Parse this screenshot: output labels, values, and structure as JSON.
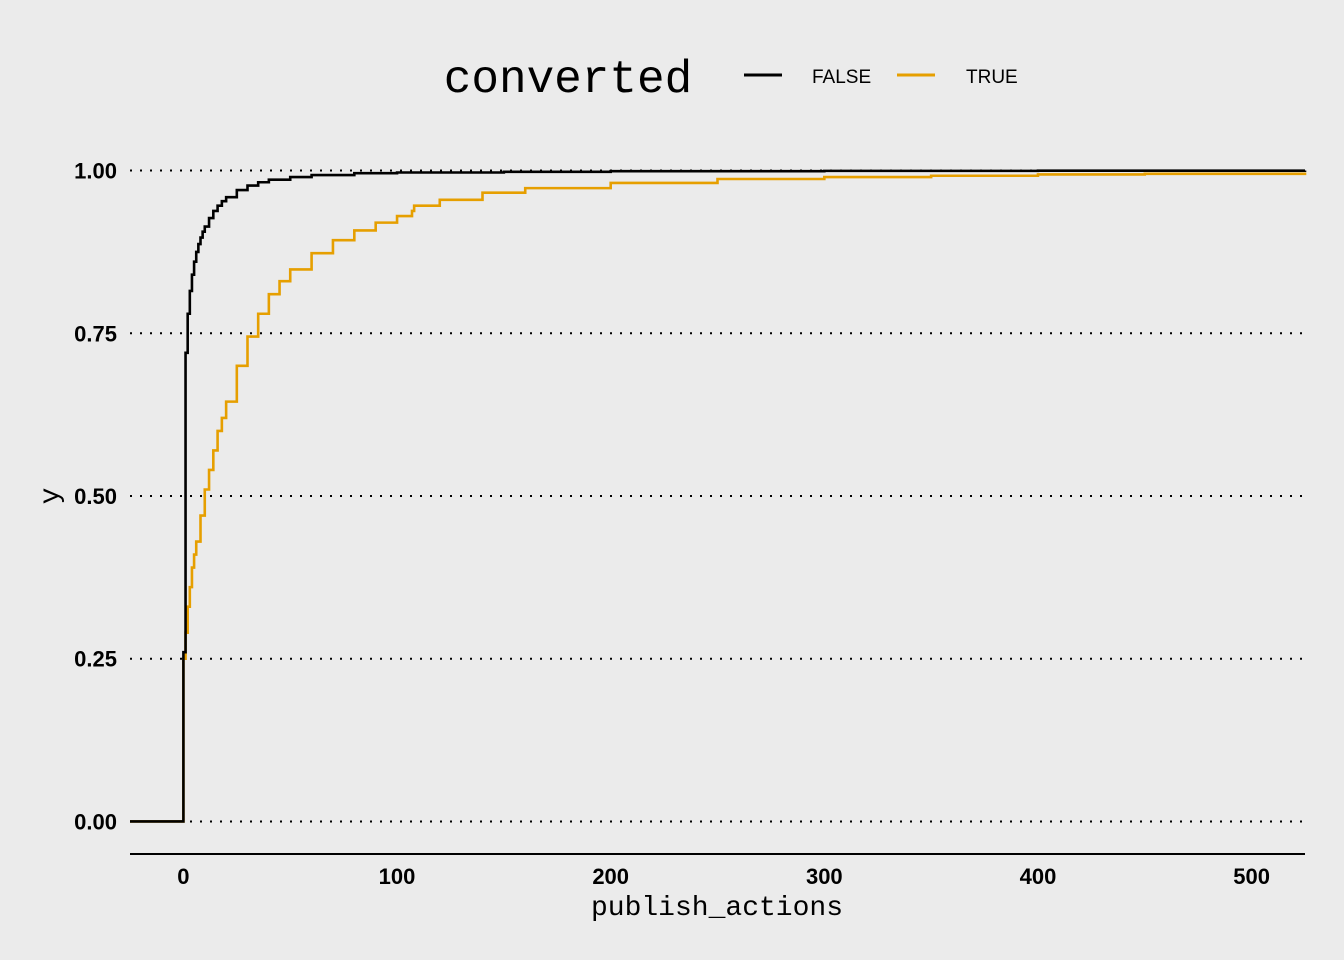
{
  "chart_data": {
    "type": "line",
    "subtype": "ecdf-step",
    "xlabel": "publish_actions",
    "ylabel": "y",
    "xlim": [
      -25,
      525
    ],
    "ylim": [
      -0.05,
      1.05
    ],
    "x_ticks": [
      0,
      100,
      200,
      300,
      400,
      500
    ],
    "x_tick_labels": [
      "0",
      "100",
      "200",
      "300",
      "400",
      "500"
    ],
    "y_ticks": [
      0,
      0.25,
      0.5,
      0.75,
      1.0
    ],
    "y_tick_labels": [
      "0.00",
      "0.25",
      "0.50",
      "0.75",
      "1.00"
    ],
    "grid": "horizontal-dotted",
    "legend": {
      "title": "converted",
      "placement": "top",
      "entries": [
        "FALSE",
        "TRUE"
      ]
    },
    "series": [
      {
        "name": "FALSE",
        "color": "#000000",
        "x": [
          -25,
          0,
          0,
          1,
          2,
          3,
          4,
          5,
          6,
          7,
          8,
          9,
          10,
          12,
          14,
          16,
          18,
          20,
          25,
          30,
          35,
          40,
          50,
          60,
          80,
          100,
          150,
          200,
          300,
          400,
          525
        ],
        "y": [
          0,
          0,
          0.26,
          0.72,
          0.78,
          0.815,
          0.84,
          0.86,
          0.875,
          0.887,
          0.897,
          0.906,
          0.914,
          0.927,
          0.938,
          0.946,
          0.953,
          0.959,
          0.97,
          0.977,
          0.982,
          0.986,
          0.99,
          0.993,
          0.996,
          0.997,
          0.998,
          0.999,
          0.9995,
          0.9998,
          1.0
        ]
      },
      {
        "name": "TRUE",
        "color": "#e69f00",
        "x": [
          -25,
          0,
          0,
          1,
          2,
          3,
          4,
          5,
          6,
          8,
          10,
          12,
          14,
          16,
          18,
          20,
          25,
          30,
          35,
          40,
          45,
          50,
          60,
          70,
          80,
          90,
          100,
          107,
          108,
          120,
          140,
          160,
          200,
          250,
          300,
          350,
          400,
          450,
          525
        ],
        "y": [
          0,
          0,
          0.25,
          0.29,
          0.33,
          0.36,
          0.39,
          0.41,
          0.43,
          0.47,
          0.51,
          0.54,
          0.57,
          0.6,
          0.62,
          0.645,
          0.7,
          0.745,
          0.78,
          0.81,
          0.83,
          0.848,
          0.873,
          0.893,
          0.908,
          0.92,
          0.93,
          0.938,
          0.946,
          0.955,
          0.966,
          0.973,
          0.981,
          0.987,
          0.99,
          0.992,
          0.994,
          0.995,
          0.997
        ]
      }
    ]
  }
}
